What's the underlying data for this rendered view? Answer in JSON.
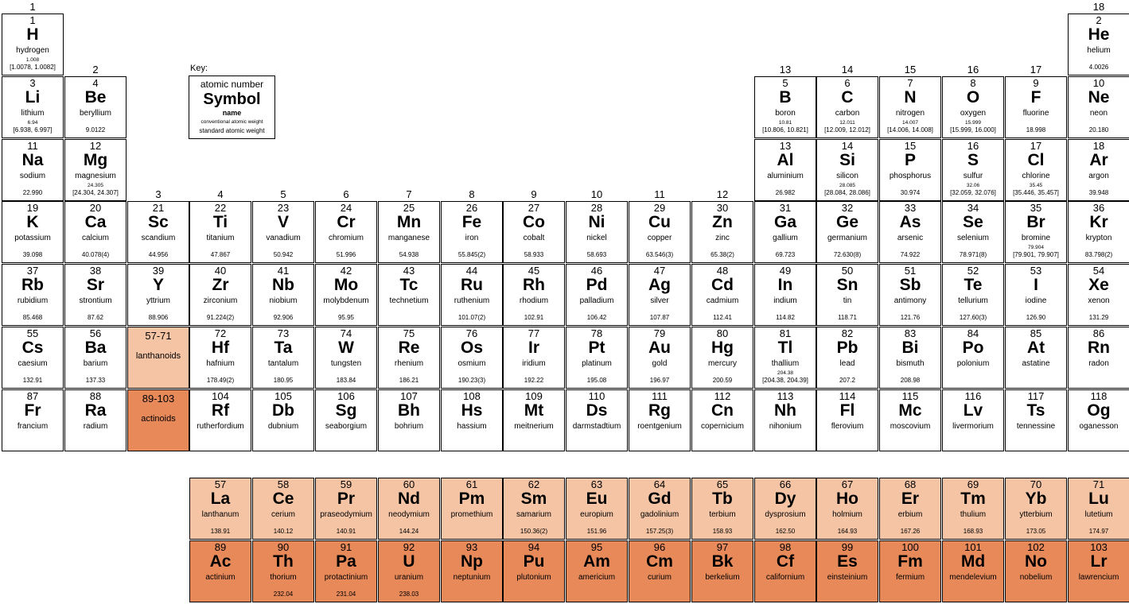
{
  "groups": [
    "1",
    "2",
    "3",
    "4",
    "5",
    "6",
    "7",
    "8",
    "9",
    "10",
    "11",
    "12",
    "13",
    "14",
    "15",
    "16",
    "17",
    "18"
  ],
  "key": {
    "title": "Key:",
    "atomic_number": "atomic number",
    "symbol": "Symbol",
    "name": "name",
    "conventional": "conventional atomic weight",
    "standard": "standard atomic weight"
  },
  "placeholders": [
    {
      "kind": "lan",
      "number": "57-71",
      "label": "lanthanoids"
    },
    {
      "kind": "act",
      "number": "89-103",
      "label": "actinoids"
    }
  ],
  "elements": [
    {
      "z": "1",
      "sym": "H",
      "name": "hydrogen",
      "conv": "1.008",
      "w": "[1.0078, 1.0082]",
      "period": 1,
      "group": 1
    },
    {
      "z": "2",
      "sym": "He",
      "name": "helium",
      "w": "4.0026",
      "period": 1,
      "group": 18
    },
    {
      "z": "3",
      "sym": "Li",
      "name": "lithium",
      "conv": "6.94",
      "w": "[6.938, 6.997]",
      "period": 2,
      "group": 1
    },
    {
      "z": "4",
      "sym": "Be",
      "name": "beryllium",
      "w": "9.0122",
      "period": 2,
      "group": 2
    },
    {
      "z": "5",
      "sym": "B",
      "name": "boron",
      "conv": "10.81",
      "w": "[10.806, 10.821]",
      "period": 2,
      "group": 13
    },
    {
      "z": "6",
      "sym": "C",
      "name": "carbon",
      "conv": "12.011",
      "w": "[12.009, 12.012]",
      "period": 2,
      "group": 14
    },
    {
      "z": "7",
      "sym": "N",
      "name": "nitrogen",
      "conv": "14.007",
      "w": "[14.006, 14.008]",
      "period": 2,
      "group": 15
    },
    {
      "z": "8",
      "sym": "O",
      "name": "oxygen",
      "conv": "15.999",
      "w": "[15.999, 16.000]",
      "period": 2,
      "group": 16
    },
    {
      "z": "9",
      "sym": "F",
      "name": "fluorine",
      "w": "18.998",
      "period": 2,
      "group": 17
    },
    {
      "z": "10",
      "sym": "Ne",
      "name": "neon",
      "w": "20.180",
      "period": 2,
      "group": 18
    },
    {
      "z": "11",
      "sym": "Na",
      "name": "sodium",
      "w": "22.990",
      "period": 3,
      "group": 1
    },
    {
      "z": "12",
      "sym": "Mg",
      "name": "magnesium",
      "conv": "24.305",
      "w": "[24.304, 24.307]",
      "period": 3,
      "group": 2
    },
    {
      "z": "13",
      "sym": "Al",
      "name": "aluminium",
      "w": "26.982",
      "period": 3,
      "group": 13
    },
    {
      "z": "14",
      "sym": "Si",
      "name": "silicon",
      "conv": "28.085",
      "w": "[28.084, 28.086]",
      "period": 3,
      "group": 14
    },
    {
      "z": "15",
      "sym": "P",
      "name": "phosphorus",
      "w": "30.974",
      "period": 3,
      "group": 15
    },
    {
      "z": "16",
      "sym": "S",
      "name": "sulfur",
      "conv": "32.06",
      "w": "[32.059, 32.076]",
      "period": 3,
      "group": 16
    },
    {
      "z": "17",
      "sym": "Cl",
      "name": "chlorine",
      "conv": "35.45",
      "w": "[35.446, 35.457]",
      "period": 3,
      "group": 17
    },
    {
      "z": "18",
      "sym": "Ar",
      "name": "argon",
      "w": "39.948",
      "period": 3,
      "group": 18
    },
    {
      "z": "19",
      "sym": "K",
      "name": "potassium",
      "w": "39.098",
      "period": 4,
      "group": 1
    },
    {
      "z": "20",
      "sym": "Ca",
      "name": "calcium",
      "w": "40.078(4)",
      "period": 4,
      "group": 2
    },
    {
      "z": "21",
      "sym": "Sc",
      "name": "scandium",
      "w": "44.956",
      "period": 4,
      "group": 3
    },
    {
      "z": "22",
      "sym": "Ti",
      "name": "titanium",
      "w": "47.867",
      "period": 4,
      "group": 4
    },
    {
      "z": "23",
      "sym": "V",
      "name": "vanadium",
      "w": "50.942",
      "period": 4,
      "group": 5
    },
    {
      "z": "24",
      "sym": "Cr",
      "name": "chromium",
      "w": "51.996",
      "period": 4,
      "group": 6
    },
    {
      "z": "25",
      "sym": "Mn",
      "name": "manganese",
      "w": "54.938",
      "period": 4,
      "group": 7
    },
    {
      "z": "26",
      "sym": "Fe",
      "name": "iron",
      "w": "55.845(2)",
      "period": 4,
      "group": 8
    },
    {
      "z": "27",
      "sym": "Co",
      "name": "cobalt",
      "w": "58.933",
      "period": 4,
      "group": 9
    },
    {
      "z": "28",
      "sym": "Ni",
      "name": "nickel",
      "w": "58.693",
      "period": 4,
      "group": 10
    },
    {
      "z": "29",
      "sym": "Cu",
      "name": "copper",
      "w": "63.546(3)",
      "period": 4,
      "group": 11
    },
    {
      "z": "30",
      "sym": "Zn",
      "name": "zinc",
      "w": "65.38(2)",
      "period": 4,
      "group": 12
    },
    {
      "z": "31",
      "sym": "Ga",
      "name": "gallium",
      "w": "69.723",
      "period": 4,
      "group": 13
    },
    {
      "z": "32",
      "sym": "Ge",
      "name": "germanium",
      "w": "72.630(8)",
      "period": 4,
      "group": 14
    },
    {
      "z": "33",
      "sym": "As",
      "name": "arsenic",
      "w": "74.922",
      "period": 4,
      "group": 15
    },
    {
      "z": "34",
      "sym": "Se",
      "name": "selenium",
      "w": "78.971(8)",
      "period": 4,
      "group": 16
    },
    {
      "z": "35",
      "sym": "Br",
      "name": "bromine",
      "conv": "79.904",
      "w": "[79.901, 79.907]",
      "period": 4,
      "group": 17
    },
    {
      "z": "36",
      "sym": "Kr",
      "name": "krypton",
      "w": "83.798(2)",
      "period": 4,
      "group": 18
    },
    {
      "z": "37",
      "sym": "Rb",
      "name": "rubidium",
      "w": "85.468",
      "period": 5,
      "group": 1
    },
    {
      "z": "38",
      "sym": "Sr",
      "name": "strontium",
      "w": "87.62",
      "period": 5,
      "group": 2
    },
    {
      "z": "39",
      "sym": "Y",
      "name": "yttrium",
      "w": "88.906",
      "period": 5,
      "group": 3
    },
    {
      "z": "40",
      "sym": "Zr",
      "name": "zirconium",
      "w": "91.224(2)",
      "period": 5,
      "group": 4
    },
    {
      "z": "41",
      "sym": "Nb",
      "name": "niobium",
      "w": "92.906",
      "period": 5,
      "group": 5
    },
    {
      "z": "42",
      "sym": "Mo",
      "name": "molybdenum",
      "w": "95.95",
      "period": 5,
      "group": 6
    },
    {
      "z": "43",
      "sym": "Tc",
      "name": "technetium",
      "period": 5,
      "group": 7
    },
    {
      "z": "44",
      "sym": "Ru",
      "name": "ruthenium",
      "w": "101.07(2)",
      "period": 5,
      "group": 8
    },
    {
      "z": "45",
      "sym": "Rh",
      "name": "rhodium",
      "w": "102.91",
      "period": 5,
      "group": 9
    },
    {
      "z": "46",
      "sym": "Pd",
      "name": "palladium",
      "w": "106.42",
      "period": 5,
      "group": 10
    },
    {
      "z": "47",
      "sym": "Ag",
      "name": "silver",
      "w": "107.87",
      "period": 5,
      "group": 11
    },
    {
      "z": "48",
      "sym": "Cd",
      "name": "cadmium",
      "w": "112.41",
      "period": 5,
      "group": 12
    },
    {
      "z": "49",
      "sym": "In",
      "name": "indium",
      "w": "114.82",
      "period": 5,
      "group": 13
    },
    {
      "z": "50",
      "sym": "Sn",
      "name": "tin",
      "w": "118.71",
      "period": 5,
      "group": 14
    },
    {
      "z": "51",
      "sym": "Sb",
      "name": "antimony",
      "w": "121.76",
      "period": 5,
      "group": 15
    },
    {
      "z": "52",
      "sym": "Te",
      "name": "tellurium",
      "w": "127.60(3)",
      "period": 5,
      "group": 16
    },
    {
      "z": "53",
      "sym": "I",
      "name": "iodine",
      "w": "126.90",
      "period": 5,
      "group": 17
    },
    {
      "z": "54",
      "sym": "Xe",
      "name": "xenon",
      "w": "131.29",
      "period": 5,
      "group": 18
    },
    {
      "z": "55",
      "sym": "Cs",
      "name": "caesium",
      "w": "132.91",
      "period": 6,
      "group": 1
    },
    {
      "z": "56",
      "sym": "Ba",
      "name": "barium",
      "w": "137.33",
      "period": 6,
      "group": 2
    },
    {
      "z": "72",
      "sym": "Hf",
      "name": "hafnium",
      "w": "178.49(2)",
      "period": 6,
      "group": 4
    },
    {
      "z": "73",
      "sym": "Ta",
      "name": "tantalum",
      "w": "180.95",
      "period": 6,
      "group": 5
    },
    {
      "z": "74",
      "sym": "W",
      "name": "tungsten",
      "w": "183.84",
      "period": 6,
      "group": 6
    },
    {
      "z": "75",
      "sym": "Re",
      "name": "rhenium",
      "w": "186.21",
      "period": 6,
      "group": 7
    },
    {
      "z": "76",
      "sym": "Os",
      "name": "osmium",
      "w": "190.23(3)",
      "period": 6,
      "group": 8
    },
    {
      "z": "77",
      "sym": "Ir",
      "name": "iridium",
      "w": "192.22",
      "period": 6,
      "group": 9
    },
    {
      "z": "78",
      "sym": "Pt",
      "name": "platinum",
      "w": "195.08",
      "period": 6,
      "group": 10
    },
    {
      "z": "79",
      "sym": "Au",
      "name": "gold",
      "w": "196.97",
      "period": 6,
      "group": 11
    },
    {
      "z": "80",
      "sym": "Hg",
      "name": "mercury",
      "w": "200.59",
      "period": 6,
      "group": 12
    },
    {
      "z": "81",
      "sym": "Tl",
      "name": "thallium",
      "conv": "204.38",
      "w": "[204.38, 204.39]",
      "period": 6,
      "group": 13
    },
    {
      "z": "82",
      "sym": "Pb",
      "name": "lead",
      "w": "207.2",
      "period": 6,
      "group": 14
    },
    {
      "z": "83",
      "sym": "Bi",
      "name": "bismuth",
      "w": "208.98",
      "period": 6,
      "group": 15
    },
    {
      "z": "84",
      "sym": "Po",
      "name": "polonium",
      "period": 6,
      "group": 16
    },
    {
      "z": "85",
      "sym": "At",
      "name": "astatine",
      "period": 6,
      "group": 17
    },
    {
      "z": "86",
      "sym": "Rn",
      "name": "radon",
      "period": 6,
      "group": 18
    },
    {
      "z": "87",
      "sym": "Fr",
      "name": "francium",
      "period": 7,
      "group": 1
    },
    {
      "z": "88",
      "sym": "Ra",
      "name": "radium",
      "period": 7,
      "group": 2
    },
    {
      "z": "104",
      "sym": "Rf",
      "name": "rutherfordium",
      "period": 7,
      "group": 4
    },
    {
      "z": "105",
      "sym": "Db",
      "name": "dubnium",
      "period": 7,
      "group": 5
    },
    {
      "z": "106",
      "sym": "Sg",
      "name": "seaborgium",
      "period": 7,
      "group": 6
    },
    {
      "z": "107",
      "sym": "Bh",
      "name": "bohrium",
      "period": 7,
      "group": 7
    },
    {
      "z": "108",
      "sym": "Hs",
      "name": "hassium",
      "period": 7,
      "group": 8
    },
    {
      "z": "109",
      "sym": "Mt",
      "name": "meitnerium",
      "period": 7,
      "group": 9
    },
    {
      "z": "110",
      "sym": "Ds",
      "name": "darmstadtium",
      "period": 7,
      "group": 10
    },
    {
      "z": "111",
      "sym": "Rg",
      "name": "roentgenium",
      "period": 7,
      "group": 11
    },
    {
      "z": "112",
      "sym": "Cn",
      "name": "copernicium",
      "period": 7,
      "group": 12
    },
    {
      "z": "113",
      "sym": "Nh",
      "name": "nihonium",
      "period": 7,
      "group": 13
    },
    {
      "z": "114",
      "sym": "Fl",
      "name": "flerovium",
      "period": 7,
      "group": 14
    },
    {
      "z": "115",
      "sym": "Mc",
      "name": "moscovium",
      "period": 7,
      "group": 15
    },
    {
      "z": "116",
      "sym": "Lv",
      "name": "livermorium",
      "period": 7,
      "group": 16
    },
    {
      "z": "117",
      "sym": "Ts",
      "name": "tennessine",
      "period": 7,
      "group": 17
    },
    {
      "z": "118",
      "sym": "Og",
      "name": "oganesson",
      "period": 7,
      "group": 18
    }
  ],
  "lanthanoids": [
    {
      "z": "57",
      "sym": "La",
      "name": "lanthanum",
      "w": "138.91"
    },
    {
      "z": "58",
      "sym": "Ce",
      "name": "cerium",
      "w": "140.12"
    },
    {
      "z": "59",
      "sym": "Pr",
      "name": "praseodymium",
      "w": "140.91"
    },
    {
      "z": "60",
      "sym": "Nd",
      "name": "neodymium",
      "w": "144.24"
    },
    {
      "z": "61",
      "sym": "Pm",
      "name": "promethium"
    },
    {
      "z": "62",
      "sym": "Sm",
      "name": "samarium",
      "w": "150.36(2)"
    },
    {
      "z": "63",
      "sym": "Eu",
      "name": "europium",
      "w": "151.96"
    },
    {
      "z": "64",
      "sym": "Gd",
      "name": "gadolinium",
      "w": "157.25(3)"
    },
    {
      "z": "65",
      "sym": "Tb",
      "name": "terbium",
      "w": "158.93"
    },
    {
      "z": "66",
      "sym": "Dy",
      "name": "dysprosium",
      "w": "162.50"
    },
    {
      "z": "67",
      "sym": "Ho",
      "name": "holmium",
      "w": "164.93"
    },
    {
      "z": "68",
      "sym": "Er",
      "name": "erbium",
      "w": "167.26"
    },
    {
      "z": "69",
      "sym": "Tm",
      "name": "thulium",
      "w": "168.93"
    },
    {
      "z": "70",
      "sym": "Yb",
      "name": "ytterbium",
      "w": "173.05"
    },
    {
      "z": "71",
      "sym": "Lu",
      "name": "lutetium",
      "w": "174.97"
    }
  ],
  "actinoids": [
    {
      "z": "89",
      "sym": "Ac",
      "name": "actinium"
    },
    {
      "z": "90",
      "sym": "Th",
      "name": "thorium",
      "w": "232.04"
    },
    {
      "z": "91",
      "sym": "Pa",
      "name": "protactinium",
      "w": "231.04"
    },
    {
      "z": "92",
      "sym": "U",
      "name": "uranium",
      "w": "238.03"
    },
    {
      "z": "93",
      "sym": "Np",
      "name": "neptunium"
    },
    {
      "z": "94",
      "sym": "Pu",
      "name": "plutonium"
    },
    {
      "z": "95",
      "sym": "Am",
      "name": "americium"
    },
    {
      "z": "96",
      "sym": "Cm",
      "name": "curium"
    },
    {
      "z": "97",
      "sym": "Bk",
      "name": "berkelium"
    },
    {
      "z": "98",
      "sym": "Cf",
      "name": "californium"
    },
    {
      "z": "99",
      "sym": "Es",
      "name": "einsteinium"
    },
    {
      "z": "100",
      "sym": "Fm",
      "name": "fermium"
    },
    {
      "z": "101",
      "sym": "Md",
      "name": "mendelevium"
    },
    {
      "z": "102",
      "sym": "No",
      "name": "nobelium"
    },
    {
      "z": "103",
      "sym": "Lr",
      "name": "lawrencium"
    }
  ],
  "colors": {
    "lanthanoid": "#f5c4a5",
    "actinoid": "#e8895a"
  }
}
